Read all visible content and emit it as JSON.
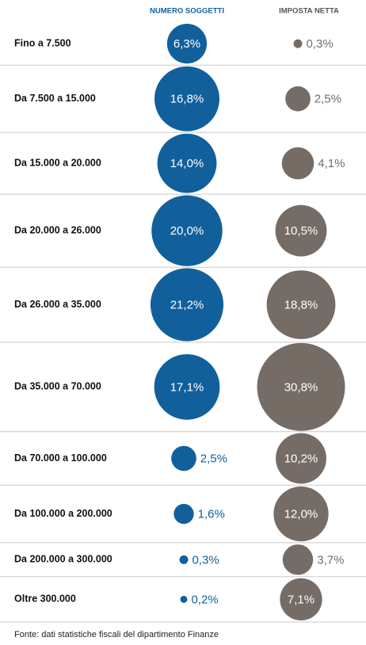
{
  "chart_data": {
    "type": "bubble",
    "categories": [
      "Fino a 7.500",
      "Da 7.500 a 15.000",
      "Da 15.000 a 20.000",
      "Da 20.000 a 26.000",
      "Da 26.000 a 35.000",
      "Da 35.000 a 70.000",
      "Da 70.000 a 100.000",
      "Da 100.000 a 200.000",
      "Da 200.000 a 300.000",
      "Oltre 300.000"
    ],
    "series": [
      {
        "name": "NUMERO SOGGETTI",
        "color": "#11609c",
        "values": [
          6.3,
          16.8,
          14.0,
          20.0,
          21.2,
          17.1,
          2.5,
          1.6,
          0.3,
          0.2
        ],
        "value_labels": [
          "6,3%",
          "16,8%",
          "14,0%",
          "20,0%",
          "21,2%",
          "17,1%",
          "2,5%",
          "1,6%",
          "0,3%",
          "0,2%"
        ]
      },
      {
        "name": "IMPOSTA NETTA",
        "color": "#766c66",
        "values": [
          0.3,
          2.5,
          4.1,
          10.5,
          18.8,
          30.8,
          10.2,
          12.0,
          3.7,
          7.1
        ],
        "value_labels": [
          "0,3%",
          "2,5%",
          "4,1%",
          "10,5%",
          "18,8%",
          "30,8%",
          "10,2%",
          "12,0%",
          "3,7%",
          "7,1%"
        ]
      }
    ],
    "source": "Fonte: dati statistiche fiscali del dipartimento Finanze"
  }
}
